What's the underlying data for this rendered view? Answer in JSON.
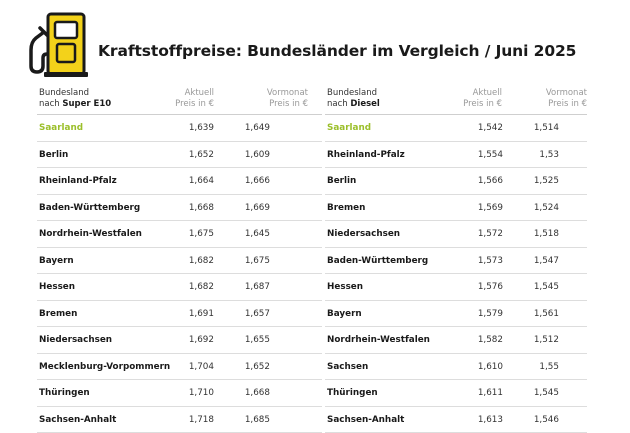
{
  "title": "Kraftstoffpreise: Bundesländer im Vergleich / Juni 2025",
  "colors": {
    "accent": "#f3d21a",
    "highlight": "#9bbf2a",
    "dark": "#1a1a1a"
  },
  "icon": "fuel-pump-icon",
  "tables": [
    {
      "header": {
        "col1_line1": "Bundesland",
        "col1_line2_prefix": "nach",
        "col1_line2_bold": "Super E10",
        "col2_line1": "Aktuell",
        "col2_line2": "Preis in €",
        "col3_line1": "Vormonat",
        "col3_line2": "Preis in €"
      },
      "rows": [
        {
          "name": "Saarland",
          "current": "1,639",
          "previous": "1,649"
        },
        {
          "name": "Berlin",
          "current": "1,652",
          "previous": "1,609"
        },
        {
          "name": "Rheinland-Pfalz",
          "current": "1,664",
          "previous": "1,666"
        },
        {
          "name": "Baden-Württemberg",
          "current": "1,668",
          "previous": "1,669"
        },
        {
          "name": "Nordrhein-Westfalen",
          "current": "1,675",
          "previous": "1,645"
        },
        {
          "name": "Bayern",
          "current": "1,682",
          "previous": "1,675"
        },
        {
          "name": "Hessen",
          "current": "1,682",
          "previous": "1,687"
        },
        {
          "name": "Bremen",
          "current": "1,691",
          "previous": "1,657"
        },
        {
          "name": "Niedersachsen",
          "current": "1,692",
          "previous": "1,655"
        },
        {
          "name": "Mecklenburg-Vorpommern",
          "current": "1,704",
          "previous": "1,652"
        },
        {
          "name": "Thüringen",
          "current": "1,710",
          "previous": "1,668"
        },
        {
          "name": "Sachsen-Anhalt",
          "current": "1,718",
          "previous": "1,685"
        }
      ]
    },
    {
      "header": {
        "col1_line1": "Bundesland",
        "col1_line2_prefix": "nach",
        "col1_line2_bold": "Diesel",
        "col2_line1": "Aktuell",
        "col2_line2": "Preis in €",
        "col3_line1": "Vormonat",
        "col3_line2": "Preis in €"
      },
      "rows": [
        {
          "name": "Saarland",
          "current": "1,542",
          "previous": "1,514"
        },
        {
          "name": "Rheinland-Pfalz",
          "current": "1,554",
          "previous": "1,53"
        },
        {
          "name": "Berlin",
          "current": "1,566",
          "previous": "1,525"
        },
        {
          "name": "Bremen",
          "current": "1,569",
          "previous": "1,524"
        },
        {
          "name": "Niedersachsen",
          "current": "1,572",
          "previous": "1,518"
        },
        {
          "name": "Baden-Württemberg",
          "current": "1,573",
          "previous": "1,547"
        },
        {
          "name": "Hessen",
          "current": "1,576",
          "previous": "1,545"
        },
        {
          "name": "Bayern",
          "current": "1,579",
          "previous": "1,561"
        },
        {
          "name": "Nordrhein-Westfalen",
          "current": "1,582",
          "previous": "1,512"
        },
        {
          "name": "Sachsen",
          "current": "1,610",
          "previous": "1,55"
        },
        {
          "name": "Thüringen",
          "current": "1,611",
          "previous": "1,545"
        },
        {
          "name": "Sachsen-Anhalt",
          "current": "1,613",
          "previous": "1,546"
        }
      ]
    }
  ]
}
